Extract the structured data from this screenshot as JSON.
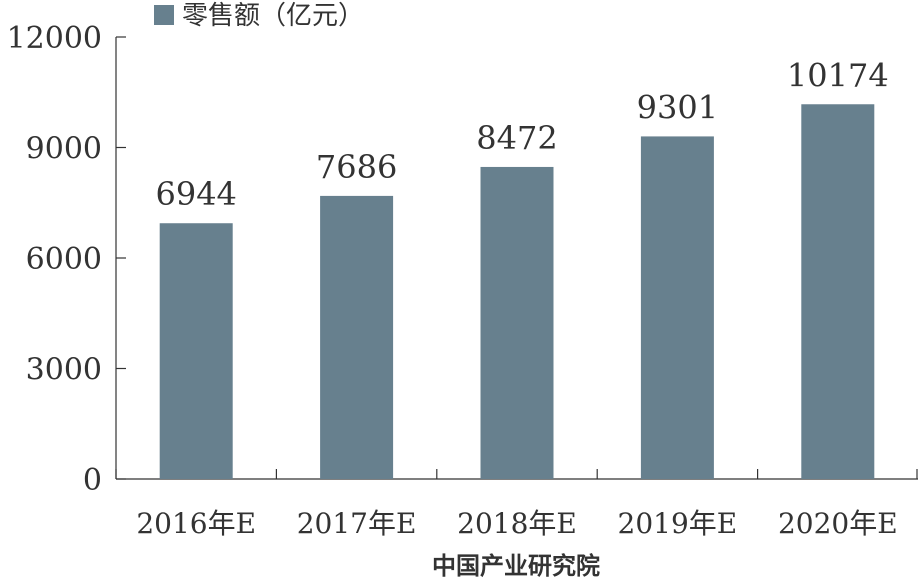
{
  "chart_data": {
    "type": "bar",
    "categories": [
      "2016年E",
      "2017年E",
      "2018年E",
      "2019年E",
      "2020年E"
    ],
    "series": [
      {
        "name": "零售额（亿元）",
        "values": [
          6944,
          7686,
          8472,
          9301,
          10174
        ],
        "color": "#67808e"
      }
    ],
    "data_labels": [
      "6944",
      "7686",
      "8472",
      "9301",
      "10174"
    ],
    "y_ticks": [
      0,
      3000,
      6000,
      9000,
      12000
    ],
    "ylim": [
      0,
      12000
    ],
    "grid": false,
    "legend_position": "top-left",
    "source": "中国产业研究院",
    "colors": {
      "axis": "#333333",
      "text": "#333333"
    }
  }
}
